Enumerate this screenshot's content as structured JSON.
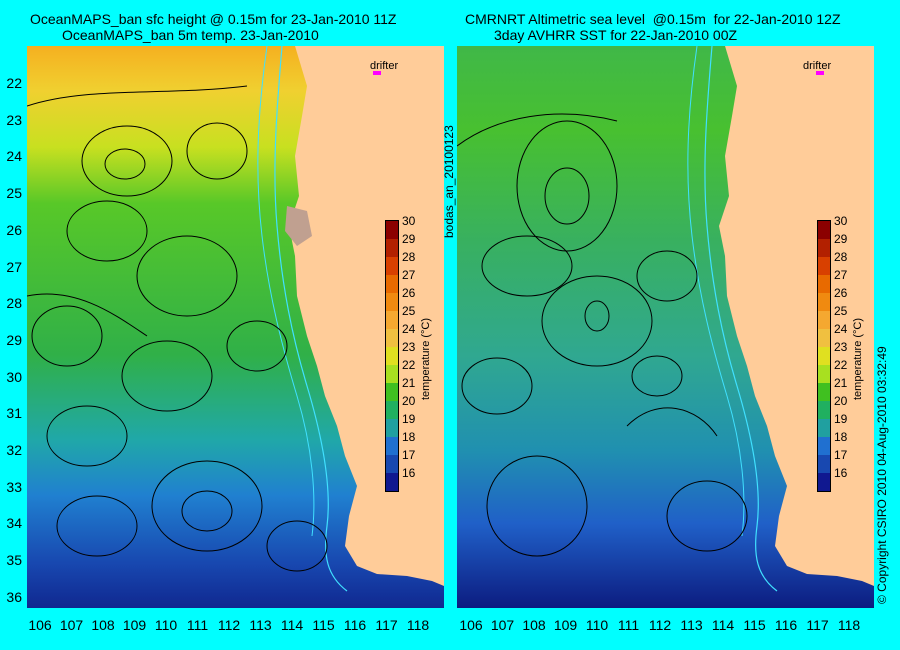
{
  "left_panel": {
    "title_line1": "OceanMAPS_ban sfc height @ 0.15m for 23-Jan-2010 11Z",
    "title_line2": "OceanMAPS_ban 5m temp. 23-Jan-2010"
  },
  "right_panel": {
    "title_line1": "CMRNRT Altimetric sea level  @0.15m  for 22-Jan-2010 12Z",
    "title_line2": "3day AVHRR SST for 22-Jan-2010 00Z"
  },
  "drifter_label": "drifter",
  "colorbar": {
    "ticks": [
      "30",
      "29",
      "28",
      "27",
      "26",
      "25",
      "24",
      "23",
      "22",
      "21",
      "20",
      "19",
      "18",
      "17",
      "16"
    ],
    "label": "temperature (°C)",
    "colors": [
      "#8b0000",
      "#b22000",
      "#d84000",
      "#e86a00",
      "#f08a10",
      "#f5a830",
      "#f0c040",
      "#e0e020",
      "#a8e020",
      "#40c020",
      "#20b060",
      "#20a0a0",
      "#2070d0",
      "#1848b0",
      "#101890"
    ]
  },
  "axes": {
    "lat_ticks": [
      "22",
      "23",
      "24",
      "25",
      "26",
      "27",
      "28",
      "29",
      "30",
      "31",
      "32",
      "33",
      "34",
      "35",
      "36"
    ],
    "lon_ticks": [
      "106",
      "107",
      "108",
      "109",
      "110",
      "111",
      "112",
      "113",
      "114",
      "115",
      "116",
      "117",
      "118"
    ]
  },
  "side_text_left": "bodas_an_20100123",
  "side_text_right": "© Copyright CSIRO 2010   04-Aug-2010 03:32:49",
  "colors": {
    "background": "#00ffff",
    "land": "#ffcc99",
    "contour": "#000000",
    "isobath": "#40e0ff",
    "drifter": "#ff00ff"
  }
}
